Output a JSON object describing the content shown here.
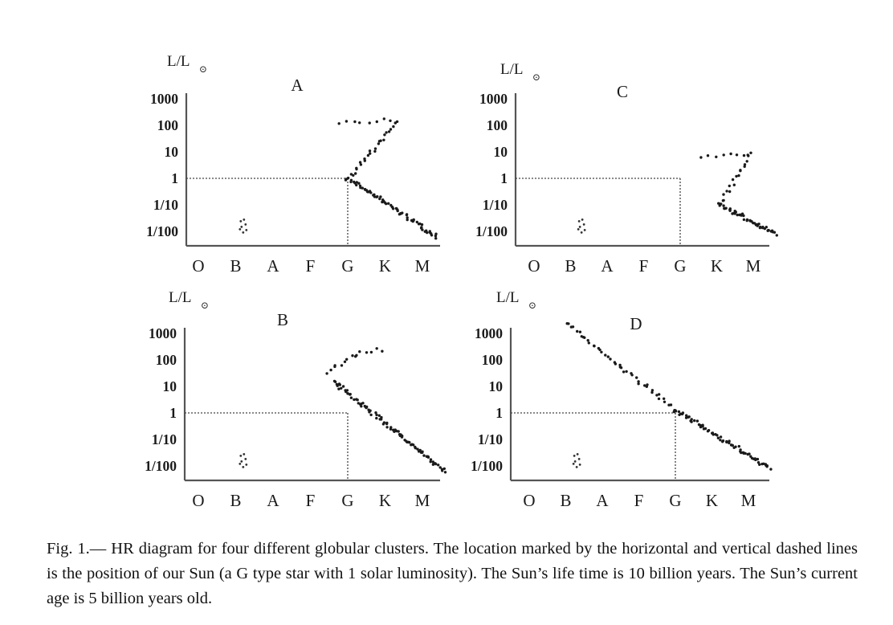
{
  "caption": "Fig. 1.— HR diagram for four different globular clusters. The location marked by the horizontal and vertical dashed lines is the position of our Sun (a G type star with 1 solar luminosity). The Sun’s life time is 10 billion years. The Sun’s current age is 5 billion years old.",
  "chart_data": [
    {
      "type": "scatter",
      "title": "A",
      "ylabel": "L/L⊙",
      "ylabel_main": "L/L",
      "ylabel_sub": "⊙",
      "categories": [
        "O",
        "B",
        "A",
        "F",
        "G",
        "K",
        "M"
      ],
      "yticks": [
        "1000",
        "100",
        "10",
        "1",
        "1/10",
        "1/100"
      ],
      "ytick_exponents": [
        3,
        2,
        1,
        0,
        -1,
        -2
      ],
      "ylim_log10": [
        -2.4,
        3.2
      ],
      "sun": {
        "x": 4,
        "y": 0
      },
      "segments": [
        {
          "name": "main_sequence",
          "from": [
            4,
            0
          ],
          "to": [
            6.4,
            -2.2
          ],
          "n": 70
        },
        {
          "name": "giant_branch",
          "from": [
            4,
            0
          ],
          "to": [
            5.3,
            2.1
          ],
          "n": 26
        },
        {
          "name": "horizontal_branch",
          "from": [
            3.8,
            2.1
          ],
          "to": [
            5.3,
            2.2
          ],
          "n": 9
        }
      ],
      "clumps": [
        {
          "x": 1.2,
          "y": -1.8
        }
      ]
    },
    {
      "type": "scatter",
      "title": "C",
      "ylabel": "L/L⊙",
      "ylabel_main": "L/L",
      "ylabel_sub": "⊙",
      "categories": [
        "O",
        "B",
        "A",
        "F",
        "G",
        "K",
        "M"
      ],
      "yticks": [
        "1000",
        "100",
        "10",
        "1",
        "1/10",
        "1/100"
      ],
      "ytick_exponents": [
        3,
        2,
        1,
        0,
        -1,
        -2
      ],
      "ylim_log10": [
        -2.4,
        3.2
      ],
      "sun": {
        "x": 4,
        "y": 0
      },
      "segments": [
        {
          "name": "main_sequence",
          "from": [
            5.1,
            -1.0
          ],
          "to": [
            6.6,
            -2.1
          ],
          "n": 50
        },
        {
          "name": "giant_branch",
          "from": [
            5.1,
            -1.0
          ],
          "to": [
            5.9,
            0.9
          ],
          "n": 18
        },
        {
          "name": "horizontal_branch",
          "from": [
            4.6,
            0.8
          ],
          "to": [
            5.9,
            0.9
          ],
          "n": 8
        }
      ],
      "clumps": [
        {
          "x": 1.3,
          "y": -1.8
        }
      ]
    },
    {
      "type": "scatter",
      "title": "B",
      "ylabel": "L/L⊙",
      "ylabel_main": "L/L",
      "ylabel_sub": "⊙",
      "categories": [
        "O",
        "B",
        "A",
        "F",
        "G",
        "K",
        "M"
      ],
      "yticks": [
        "1000",
        "100",
        "10",
        "1",
        "1/10",
        "1/100"
      ],
      "ytick_exponents": [
        3,
        2,
        1,
        0,
        -1,
        -2
      ],
      "ylim_log10": [
        -2.4,
        3.2
      ],
      "sun": {
        "x": 4,
        "y": 0
      },
      "segments": [
        {
          "name": "main_sequence",
          "from": [
            3.6,
            1.2
          ],
          "to": [
            6.6,
            -2.2
          ],
          "n": 90
        },
        {
          "name": "giant_branch",
          "from": [
            3.4,
            1.5
          ],
          "to": [
            4.2,
            2.2
          ],
          "n": 9
        },
        {
          "name": "horizontal_branch",
          "from": [
            4.2,
            2.2
          ],
          "to": [
            4.9,
            2.4
          ],
          "n": 6
        }
      ],
      "clumps": [
        {
          "x": 1.2,
          "y": -1.8
        }
      ]
    },
    {
      "type": "scatter",
      "title": "D",
      "ylabel": "L/L⊙",
      "ylabel_main": "L/L",
      "ylabel_sub": "⊙",
      "categories": [
        "O",
        "B",
        "A",
        "F",
        "G",
        "K",
        "M"
      ],
      "yticks": [
        "1000",
        "100",
        "10",
        "1",
        "1/10",
        "1/100"
      ],
      "ytick_exponents": [
        3,
        2,
        1,
        0,
        -1,
        -2
      ],
      "ylim_log10": [
        -2.4,
        3.2
      ],
      "sun": {
        "x": 4,
        "y": 0
      },
      "segments": [
        {
          "name": "upper_main_sequence",
          "from": [
            1.0,
            3.4
          ],
          "to": [
            4.0,
            0.1
          ],
          "n": 45
        },
        {
          "name": "lower_main_sequence",
          "from": [
            4.0,
            0.1
          ],
          "to": [
            6.6,
            -2.1
          ],
          "n": 70
        }
      ],
      "clumps": [
        {
          "x": 1.3,
          "y": -1.8
        }
      ]
    }
  ]
}
